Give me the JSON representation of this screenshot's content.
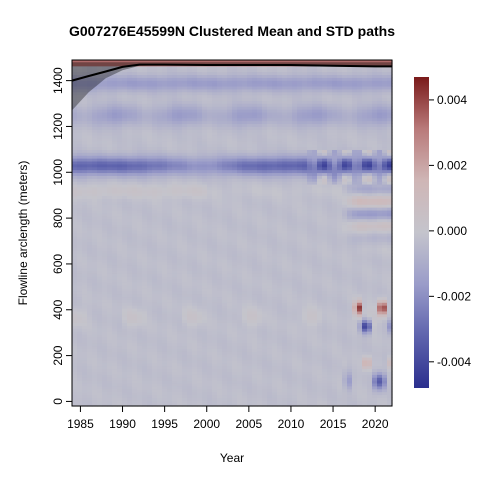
{
  "chart_data": {
    "type": "heatmap",
    "title": "G007276E45599N Clustered Mean and STD paths",
    "xlabel": "Year",
    "ylabel": "Flowline arclength (meters)",
    "xlim": [
      1984,
      2022
    ],
    "ylim": [
      -20,
      1490
    ],
    "x_ticks": [
      1985,
      1990,
      1995,
      2000,
      2005,
      2010,
      2015,
      2020
    ],
    "y_ticks": [
      0,
      200,
      400,
      600,
      800,
      1000,
      1200,
      1400
    ],
    "colorbar": {
      "range": [
        -0.0048,
        0.0047
      ],
      "ticks": [
        0.004,
        0.002,
        0.0,
        -0.002,
        -0.004
      ],
      "tick_labels": [
        "0.004",
        "0.002",
        "0.000",
        "-0.002",
        "-0.004"
      ],
      "colors": [
        "#2b2f8e",
        "#5e63ad",
        "#9a9cc9",
        "#c4c4cc",
        "#cfb6b6",
        "#b97a7a",
        "#7a1a1a"
      ]
    },
    "mean_path": {
      "x": [
        1984,
        1986,
        1988,
        1990,
        1992,
        1995,
        2000,
        2005,
        2010,
        2015,
        2020,
        2022
      ],
      "y": [
        1400,
        1420,
        1440,
        1460,
        1470,
        1470,
        1468,
        1468,
        1468,
        1465,
        1462,
        1462
      ]
    },
    "std_upper": {
      "x": [
        1984,
        1986,
        1988,
        1990,
        1992,
        2022
      ],
      "y": [
        1480,
        1480,
        1480,
        1480,
        1480,
        1480
      ]
    },
    "std_lower": {
      "x": [
        1984,
        1985,
        1986,
        1987,
        1988,
        1990,
        1992,
        1995,
        2000,
        2022
      ],
      "y": [
        1270,
        1310,
        1350,
        1380,
        1410,
        1445,
        1465,
        1468,
        1466,
        1460
      ]
    }
  }
}
